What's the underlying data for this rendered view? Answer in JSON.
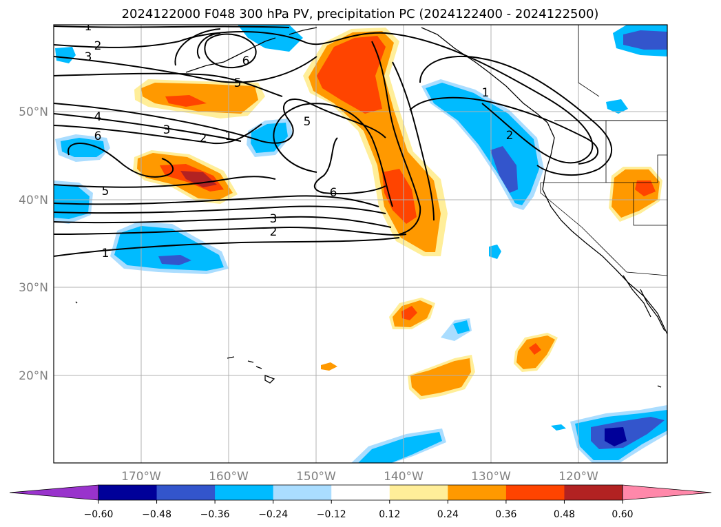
{
  "title": "2024122000 F048 300 hPa PV, precipitation PC (2024122400 - 2024122500)",
  "lon_ticks": [
    "170°W",
    "160°W",
    "150°W",
    "140°W",
    "130°W",
    "120°W"
  ],
  "lat_ticks": [
    "50°N",
    "40°N",
    "30°N",
    "20°N"
  ],
  "colorbar": {
    "colors": [
      "#9933cc",
      "#000099",
      "#3355cc",
      "#00bbff",
      "#aaddff",
      "#ffffff",
      "#ffee99",
      "#ff9900",
      "#ff4400",
      "#b22222",
      "#ff88aa"
    ],
    "tick_labels": [
      "−0.60",
      "−0.48",
      "−0.36",
      "−0.24",
      "−0.12",
      "0.12",
      "0.24",
      "0.36",
      "0.48",
      "0.60"
    ]
  },
  "pv_contour_labels": [
    "1",
    "2",
    "3",
    "4",
    "6",
    "5",
    "3",
    "2",
    "1",
    "6",
    "5",
    "5",
    "6",
    "3",
    "2",
    "1",
    "2",
    "1"
  ]
}
